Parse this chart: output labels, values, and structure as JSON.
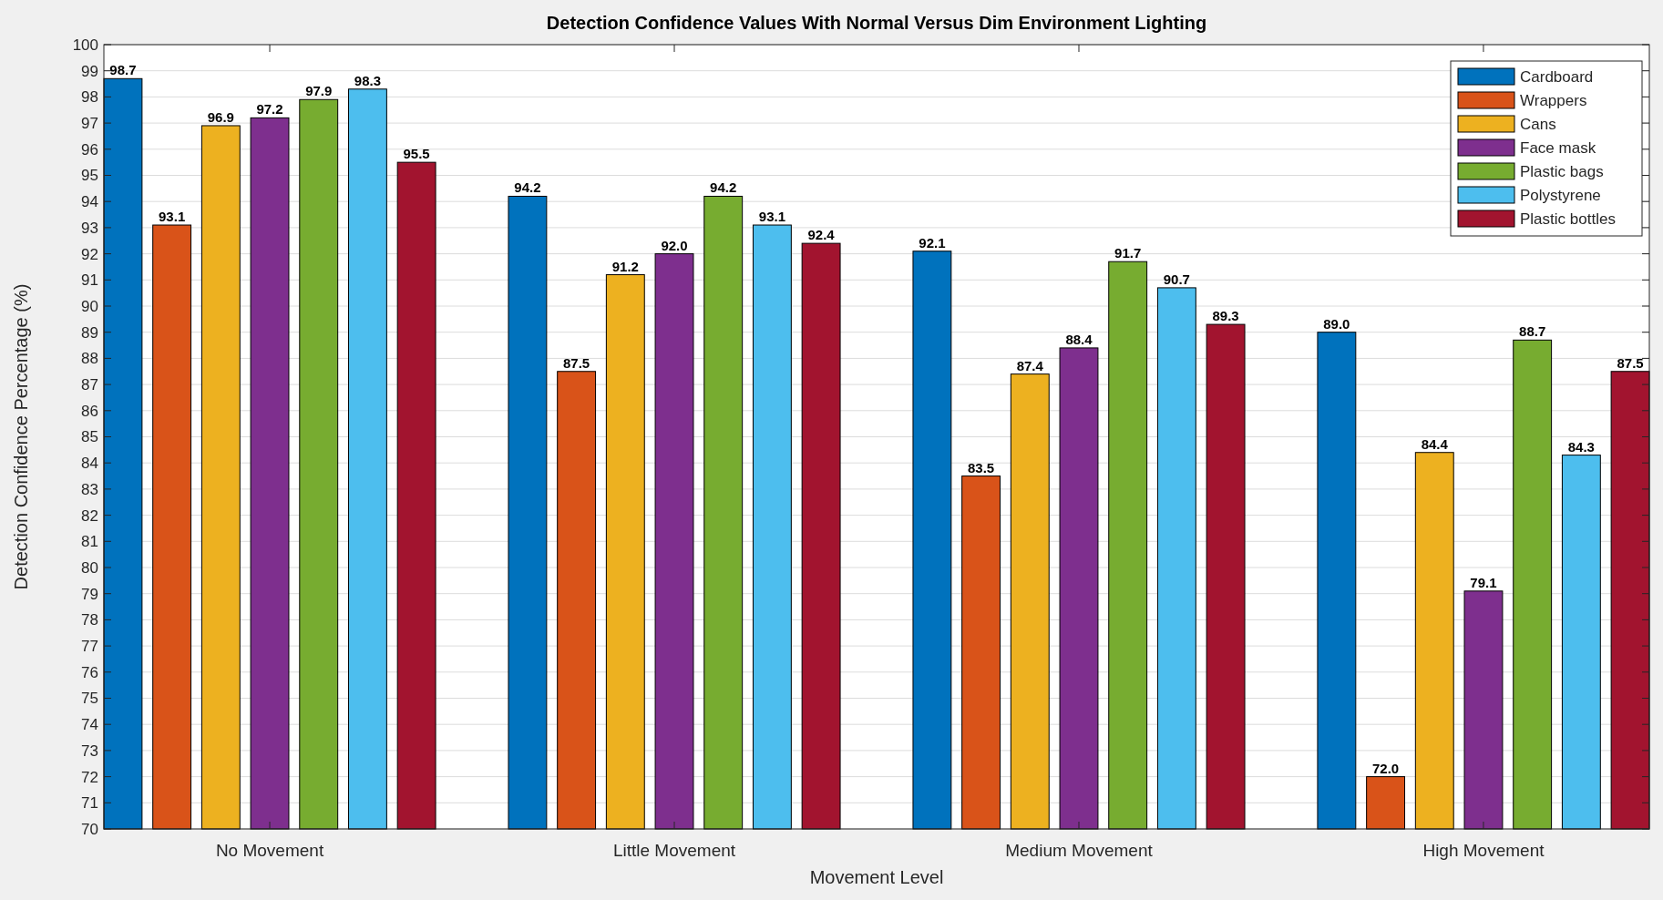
{
  "chart_data": {
    "type": "bar",
    "title": "Detection Confidence Values With Normal Versus Dim Environment Lighting",
    "xlabel": "Movement Level",
    "ylabel": "Detection Confidence Percentage (%)",
    "categories": [
      "No Movement",
      "Little Movement",
      "Medium Movement",
      "High Movement"
    ],
    "series": [
      {
        "name": "Cardboard",
        "color": "#0072bd",
        "values": [
          98.7,
          94.2,
          92.1,
          89.0
        ],
        "value_labels": [
          "98.7",
          "94.2",
          "92.1",
          "89.0"
        ]
      },
      {
        "name": "Wrappers",
        "color": "#d95319",
        "values": [
          93.1,
          87.5,
          83.5,
          72.0
        ],
        "value_labels": [
          "93.1",
          "87.5",
          "83.5",
          "72.0"
        ]
      },
      {
        "name": "Cans",
        "color": "#edb120",
        "values": [
          96.9,
          91.2,
          87.4,
          84.4
        ],
        "value_labels": [
          "96.9",
          "91.2",
          "87.4",
          "84.4"
        ]
      },
      {
        "name": "Face mask",
        "color": "#7e2f8e",
        "values": [
          97.2,
          92.0,
          88.4,
          79.1
        ],
        "value_labels": [
          "97.2",
          "92.0",
          "88.4",
          "79.1"
        ]
      },
      {
        "name": "Plastic bags",
        "color": "#77ac30",
        "values": [
          97.9,
          94.2,
          91.7,
          88.7
        ],
        "value_labels": [
          "97.9",
          "94.2",
          "91.7",
          "88.7"
        ]
      },
      {
        "name": "Polystyrene",
        "color": "#4dbeee",
        "values": [
          98.3,
          93.1,
          90.7,
          84.3
        ],
        "value_labels": [
          "98.3",
          "93.1",
          "90.7",
          "84.3"
        ]
      },
      {
        "name": "Plastic bottles",
        "color": "#a2142f",
        "values": [
          95.5,
          92.4,
          89.3,
          87.5
        ],
        "value_labels": [
          "95.5",
          "92.4",
          "89.3",
          "87.5"
        ]
      }
    ],
    "ylim": [
      70,
      100
    ],
    "yticks": [
      70,
      71,
      72,
      73,
      74,
      75,
      76,
      77,
      78,
      79,
      80,
      81,
      82,
      83,
      84,
      85,
      86,
      87,
      88,
      89,
      90,
      91,
      92,
      93,
      94,
      95,
      96,
      97,
      98,
      99,
      100
    ],
    "grid": "y",
    "legend": "top right"
  }
}
